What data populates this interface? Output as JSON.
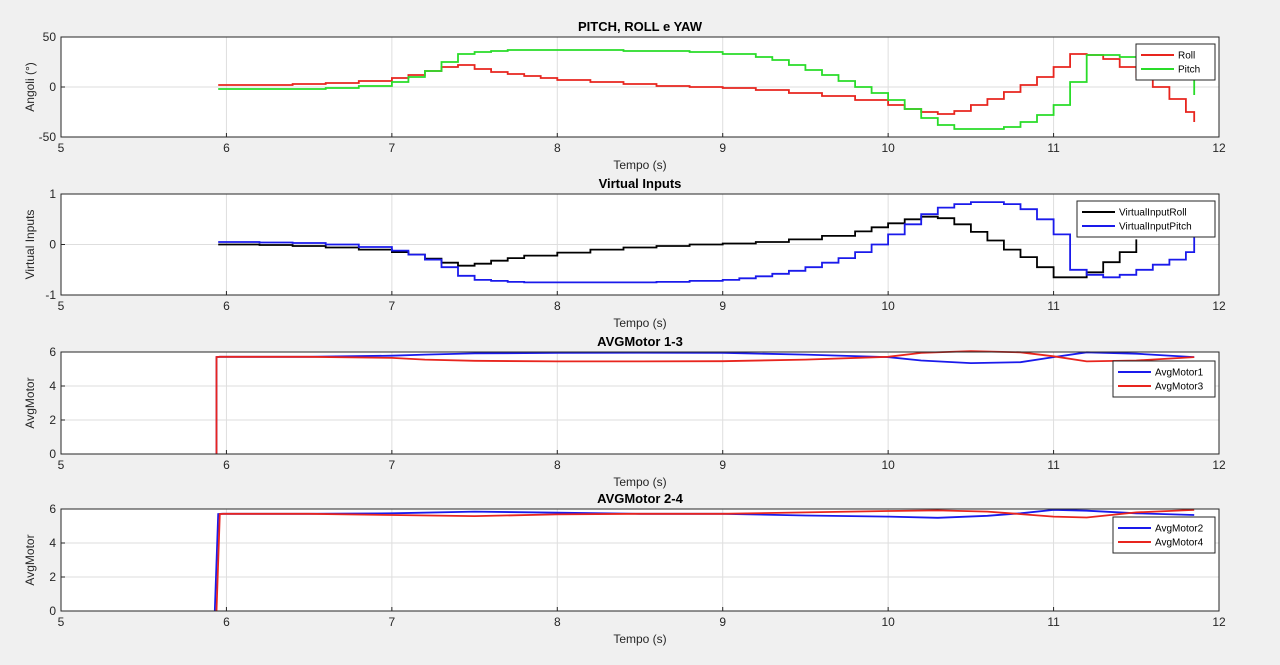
{
  "chart_data": [
    {
      "type": "line",
      "title": "PITCH, ROLL e YAW",
      "xlabel": "Tempo (s)",
      "ylabel": "Angoli (°)",
      "xlim": [
        5,
        12
      ],
      "ylim": [
        -50,
        50
      ],
      "xticks": [
        5,
        6,
        7,
        8,
        9,
        10,
        11,
        12
      ],
      "yticks": [
        -50,
        0,
        50
      ],
      "grid": true,
      "legend_position": "top-right",
      "step": true,
      "series": [
        {
          "name": "Roll",
          "color": "#e8251e",
          "x": [
            5.95,
            6.2,
            6.4,
            6.6,
            6.8,
            7.0,
            7.1,
            7.2,
            7.3,
            7.4,
            7.5,
            7.6,
            7.7,
            7.8,
            7.9,
            8.0,
            8.2,
            8.4,
            8.6,
            8.8,
            9.0,
            9.2,
            9.4,
            9.6,
            9.8,
            10.0,
            10.1,
            10.2,
            10.3,
            10.4,
            10.5,
            10.6,
            10.7,
            10.8,
            10.9,
            11.0,
            11.1,
            11.2,
            11.3,
            11.4,
            11.5,
            11.6,
            11.7,
            11.8,
            11.85
          ],
          "y": [
            2,
            2,
            3,
            4,
            6,
            9,
            12,
            16,
            20,
            22,
            18,
            15,
            13,
            11,
            9,
            7,
            5,
            3,
            1,
            0,
            -1,
            -3,
            -6,
            -9,
            -13,
            -18,
            -22,
            -25,
            -27,
            -24,
            -18,
            -12,
            -5,
            2,
            10,
            20,
            33,
            32,
            28,
            20,
            10,
            0,
            -12,
            -25,
            -35
          ]
        },
        {
          "name": "Pitch",
          "color": "#29dc29",
          "x": [
            5.95,
            6.2,
            6.4,
            6.6,
            6.8,
            7.0,
            7.1,
            7.2,
            7.3,
            7.4,
            7.5,
            7.6,
            7.7,
            7.8,
            8.0,
            8.2,
            8.4,
            8.6,
            8.8,
            9.0,
            9.2,
            9.3,
            9.4,
            9.5,
            9.6,
            9.7,
            9.8,
            9.9,
            10.0,
            10.1,
            10.2,
            10.3,
            10.4,
            10.5,
            10.6,
            10.7,
            10.8,
            10.9,
            11.0,
            11.1,
            11.2,
            11.3,
            11.4,
            11.5,
            11.6,
            11.7,
            11.8,
            11.85
          ],
          "y": [
            -2,
            -2,
            -2,
            -1,
            1,
            5,
            10,
            16,
            25,
            33,
            35,
            36,
            37,
            37,
            37,
            37,
            36,
            36,
            35,
            33,
            30,
            27,
            22,
            17,
            12,
            6,
            0,
            -6,
            -13,
            -22,
            -31,
            -38,
            -42,
            -42,
            -42,
            -40,
            -35,
            -28,
            -18,
            5,
            32,
            32,
            30,
            30,
            28,
            25,
            20,
            -8
          ]
        }
      ]
    },
    {
      "type": "line",
      "title": "Virtual Inputs",
      "xlabel": "Tempo (s)",
      "ylabel": "Virtual Inputs",
      "xlim": [
        5,
        12
      ],
      "ylim": [
        -1,
        1
      ],
      "xticks": [
        5,
        6,
        7,
        8,
        9,
        10,
        11,
        12
      ],
      "yticks": [
        -1,
        0,
        1
      ],
      "grid": true,
      "legend_position": "top-right",
      "step": true,
      "series": [
        {
          "name": "VirtualInputRoll",
          "color": "#000000",
          "x": [
            5.95,
            6.2,
            6.4,
            6.6,
            6.8,
            7.0,
            7.1,
            7.2,
            7.3,
            7.4,
            7.5,
            7.6,
            7.7,
            7.8,
            8.0,
            8.2,
            8.4,
            8.6,
            8.8,
            9.0,
            9.2,
            9.4,
            9.6,
            9.8,
            9.9,
            10.0,
            10.1,
            10.2,
            10.3,
            10.4,
            10.5,
            10.6,
            10.7,
            10.8,
            10.9,
            11.0,
            11.1,
            11.2,
            11.3,
            11.4,
            11.5
          ],
          "y": [
            0,
            -0.01,
            -0.03,
            -0.06,
            -0.1,
            -0.15,
            -0.2,
            -0.28,
            -0.36,
            -0.42,
            -0.38,
            -0.32,
            -0.27,
            -0.22,
            -0.16,
            -0.1,
            -0.06,
            -0.03,
            0.0,
            0.02,
            0.05,
            0.1,
            0.17,
            0.26,
            0.34,
            0.42,
            0.5,
            0.55,
            0.52,
            0.4,
            0.25,
            0.08,
            -0.1,
            -0.25,
            -0.45,
            -0.65,
            -0.65,
            -0.55,
            -0.35,
            -0.15,
            0.1
          ]
        },
        {
          "name": "VirtualInputPitch",
          "color": "#1a1aeb",
          "x": [
            5.95,
            6.2,
            6.4,
            6.6,
            6.8,
            7.0,
            7.1,
            7.2,
            7.3,
            7.4,
            7.5,
            7.6,
            7.7,
            7.8,
            8.0,
            8.2,
            8.4,
            8.6,
            8.8,
            9.0,
            9.1,
            9.2,
            9.3,
            9.4,
            9.5,
            9.6,
            9.7,
            9.8,
            9.9,
            10.0,
            10.1,
            10.2,
            10.3,
            10.4,
            10.5,
            10.6,
            10.7,
            10.8,
            10.9,
            11.0,
            11.1,
            11.2,
            11.3,
            11.4,
            11.5,
            11.6,
            11.7,
            11.8,
            11.85
          ],
          "y": [
            0.05,
            0.04,
            0.03,
            0.0,
            -0.05,
            -0.12,
            -0.2,
            -0.3,
            -0.45,
            -0.62,
            -0.7,
            -0.72,
            -0.74,
            -0.75,
            -0.75,
            -0.75,
            -0.75,
            -0.74,
            -0.72,
            -0.7,
            -0.67,
            -0.63,
            -0.58,
            -0.52,
            -0.45,
            -0.36,
            -0.27,
            -0.15,
            0.0,
            0.2,
            0.4,
            0.6,
            0.73,
            0.8,
            0.84,
            0.84,
            0.8,
            0.7,
            0.5,
            0.2,
            -0.5,
            -0.6,
            -0.65,
            -0.6,
            -0.5,
            -0.4,
            -0.3,
            -0.15,
            0.15
          ]
        }
      ]
    },
    {
      "type": "line",
      "title": "AVGMotor 1-3",
      "xlabel": "Tempo (s)",
      "ylabel": "AvgMotor",
      "xlim": [
        5,
        12
      ],
      "ylim": [
        0,
        6
      ],
      "xticks": [
        5,
        6,
        7,
        8,
        9,
        10,
        11,
        12
      ],
      "yticks": [
        0,
        2,
        4,
        6
      ],
      "grid": true,
      "legend_position": "right",
      "step": false,
      "series": [
        {
          "name": "AvgMotor1",
          "color": "#1a1aeb",
          "x": [
            5.94,
            5.94,
            5.96,
            6.2,
            6.5,
            7.0,
            7.2,
            7.5,
            8.0,
            8.5,
            9.0,
            9.5,
            10.0,
            10.2,
            10.5,
            10.8,
            11.0,
            11.2,
            11.5,
            11.85
          ],
          "y": [
            0,
            5.7,
            5.72,
            5.72,
            5.72,
            5.78,
            5.85,
            5.92,
            5.95,
            5.96,
            5.95,
            5.85,
            5.7,
            5.5,
            5.35,
            5.4,
            5.7,
            5.98,
            5.9,
            5.7
          ]
        },
        {
          "name": "AvgMotor3",
          "color": "#e8251e",
          "x": [
            5.94,
            5.94,
            5.96,
            6.2,
            6.5,
            7.0,
            7.2,
            7.5,
            8.0,
            8.5,
            9.0,
            9.5,
            10.0,
            10.2,
            10.5,
            10.8,
            11.0,
            11.2,
            11.5,
            11.85
          ],
          "y": [
            0,
            5.7,
            5.72,
            5.72,
            5.72,
            5.65,
            5.55,
            5.48,
            5.45,
            5.45,
            5.46,
            5.55,
            5.72,
            5.95,
            6.05,
            5.98,
            5.75,
            5.45,
            5.5,
            5.7
          ]
        }
      ]
    },
    {
      "type": "line",
      "title": "AVGMotor 2-4",
      "xlabel": "Tempo (s)",
      "ylabel": "AvgMotor",
      "xlim": [
        5,
        12
      ],
      "ylim": [
        0,
        6
      ],
      "xticks": [
        5,
        6,
        7,
        8,
        9,
        10,
        11,
        12
      ],
      "yticks": [
        0,
        2,
        4,
        6
      ],
      "grid": true,
      "legend_position": "right",
      "step": false,
      "series": [
        {
          "name": "AvgMotor2",
          "color": "#1a1aeb",
          "x": [
            5.93,
            5.95,
            5.97,
            6.2,
            6.5,
            7.0,
            7.5,
            8.0,
            8.5,
            9.0,
            9.5,
            10.0,
            10.3,
            10.6,
            10.8,
            11.0,
            11.2,
            11.5,
            11.85
          ],
          "y": [
            0,
            5.7,
            5.72,
            5.72,
            5.72,
            5.75,
            5.85,
            5.78,
            5.72,
            5.72,
            5.62,
            5.55,
            5.48,
            5.6,
            5.75,
            5.95,
            5.9,
            5.75,
            5.65
          ]
        },
        {
          "name": "AvgMotor4",
          "color": "#e8251e",
          "x": [
            5.94,
            5.96,
            5.98,
            6.2,
            6.5,
            7.0,
            7.5,
            8.0,
            8.5,
            9.0,
            9.5,
            10.0,
            10.3,
            10.6,
            10.8,
            11.0,
            11.2,
            11.5,
            11.85
          ],
          "y": [
            0,
            5.7,
            5.72,
            5.72,
            5.72,
            5.65,
            5.58,
            5.68,
            5.72,
            5.72,
            5.8,
            5.88,
            5.92,
            5.85,
            5.7,
            5.55,
            5.5,
            5.8,
            5.95
          ]
        }
      ]
    }
  ]
}
